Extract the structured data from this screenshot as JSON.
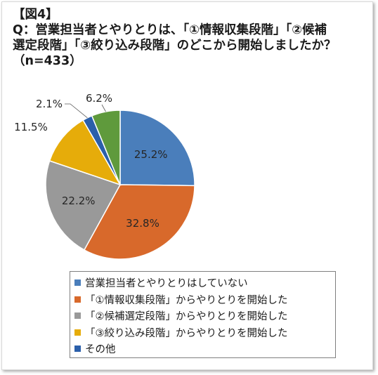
{
  "title_lines": [
    "【図4】",
    "Q：営業担当者とやりとりは、「①情報収集段階」「②候補",
    "選定段階」「③絞り込み段階」のどこから開始しましたか？",
    "（n=433）"
  ],
  "chart_data": {
    "type": "pie",
    "title": "【図4】 Q：営業担当者とやりとりは、「①情報収集段階」「②候補選定段階」「③絞り込み段階」のどこから開始しましたか？（n=433）",
    "slices": [
      {
        "label": "営業担当者とやりとりはしていない",
        "value": 25.2,
        "display": "25.2%",
        "color": "#4a7ebb"
      },
      {
        "label": "「①情報収集段階」からやりとりを開始した",
        "value": 32.8,
        "display": "32.8%",
        "color": "#d8692b"
      },
      {
        "label": "「②候補選定段階」からやりとりを開始した",
        "value": 22.2,
        "display": "22.2%",
        "color": "#999999"
      },
      {
        "label": "「③絞り込み段階」からやりとりを開始した",
        "value": 11.5,
        "display": "11.5%",
        "color": "#e6ac0a"
      },
      {
        "label": "その他",
        "value": 2.1,
        "display": "2.1%",
        "color": "#2b5faa"
      },
      {
        "label": "",
        "value": 6.2,
        "display": "6.2%",
        "color": "#5f9a3c"
      }
    ],
    "start_angle_deg": 0,
    "direction": "clockwise",
    "legend_position": "bottom",
    "legend_entries": [
      "営業担当者とやりとりはしていない",
      "「①情報収集段階」からやりとりを開始した",
      "「②候補選定段階」からやりとりを開始した",
      "「③絞り込み段階」からやりとりを開始した",
      "その他"
    ]
  }
}
